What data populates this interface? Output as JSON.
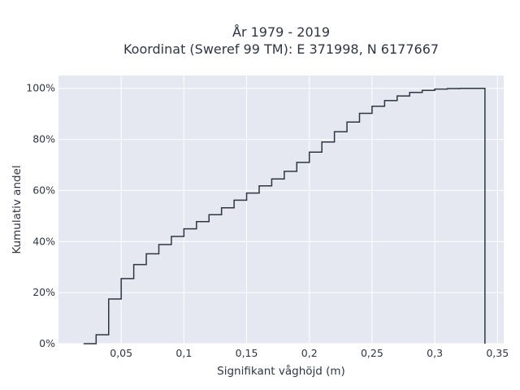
{
  "chart_data": {
    "type": "line",
    "subtype": "cumulative step histogram",
    "title_line1": "År 1979 - 2019",
    "title_line2": "Koordinat (Sweref 99 TM): E 371998, N 6177667",
    "xlabel": "Signifikant våghöjd (m)",
    "ylabel": "Kumulativ andel",
    "xlim": [
      0.0,
      0.355
    ],
    "ylim": [
      0,
      1.05
    ],
    "x_ticks": [
      0.05,
      0.1,
      0.15,
      0.2,
      0.25,
      0.3,
      0.35
    ],
    "x_tick_labels": [
      "0,05",
      "0,1",
      "0,15",
      "0,2",
      "0,25",
      "0,3",
      "0,35"
    ],
    "y_ticks": [
      0,
      0.2,
      0.4,
      0.6,
      0.8,
      1.0
    ],
    "y_tick_labels": [
      "0%",
      "20%",
      "40%",
      "60%",
      "80%",
      "100%"
    ],
    "grid": true,
    "colors": {
      "plot_background": "#e5e8f0",
      "grid": "#ffffff",
      "line": "#2f3542"
    },
    "series": [
      {
        "bin_edges": [
          0.02,
          0.03,
          0.04,
          0.05,
          0.06,
          0.07,
          0.08,
          0.09,
          0.1,
          0.11,
          0.12,
          0.13,
          0.14,
          0.15,
          0.16,
          0.17,
          0.18,
          0.19,
          0.2,
          0.21,
          0.22,
          0.23,
          0.24,
          0.25,
          0.26,
          0.27,
          0.28,
          0.29,
          0.3,
          0.31,
          0.32,
          0.33,
          0.34
        ],
        "cumulative": [
          0.0,
          0.035,
          0.175,
          0.255,
          0.31,
          0.352,
          0.388,
          0.42,
          0.45,
          0.478,
          0.505,
          0.532,
          0.562,
          0.59,
          0.618,
          0.645,
          0.675,
          0.71,
          0.75,
          0.79,
          0.83,
          0.868,
          0.902,
          0.93,
          0.952,
          0.97,
          0.984,
          0.992,
          0.997,
          0.999,
          1.0,
          1.0
        ]
      }
    ]
  }
}
